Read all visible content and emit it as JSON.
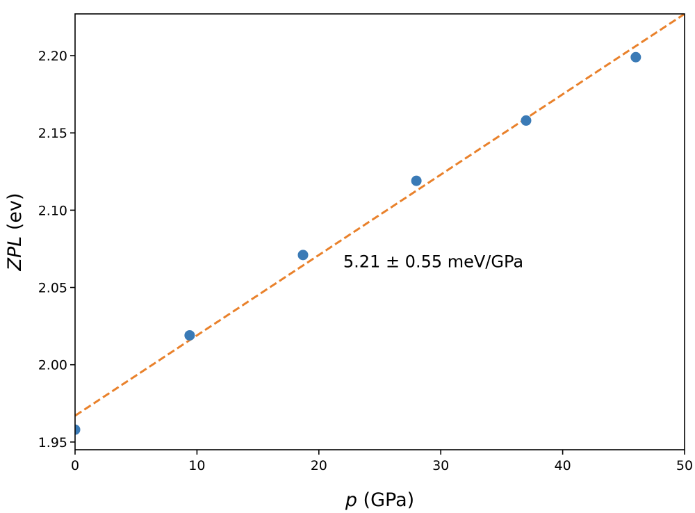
{
  "chart_data": {
    "type": "scatter",
    "title": "",
    "xlabel_var": "p",
    "xlabel_unit": " (GPa)",
    "ylabel_var": "ZPL",
    "ylabel_unit": " (ev)",
    "xlim": [
      0,
      50
    ],
    "ylim": [
      1.945,
      2.227
    ],
    "x_ticks": [
      0,
      10,
      20,
      30,
      40,
      50
    ],
    "x_tick_labels": [
      "0",
      "10",
      "20",
      "30",
      "40",
      "50"
    ],
    "y_ticks": [
      1.95,
      2.0,
      2.05,
      2.1,
      2.15,
      2.2
    ],
    "y_tick_labels": [
      "1.95",
      "2.00",
      "2.05",
      "2.10",
      "2.15",
      "2.20"
    ],
    "grid": false,
    "series": [
      {
        "type": "scatter",
        "color": "#3a7ab6",
        "x": [
          0,
          9.4,
          18.7,
          28.0,
          37.0,
          46.0
        ],
        "y": [
          1.958,
          2.019,
          2.071,
          2.119,
          2.158,
          2.199
        ]
      },
      {
        "type": "line",
        "style": "dashed",
        "color": "#e9812b",
        "x": [
          0,
          50
        ],
        "y": [
          1.967,
          2.227
        ]
      }
    ],
    "annotation": {
      "text": "5.21 ± 0.55 meV/GPa",
      "x": 22,
      "y": 2.063
    }
  }
}
